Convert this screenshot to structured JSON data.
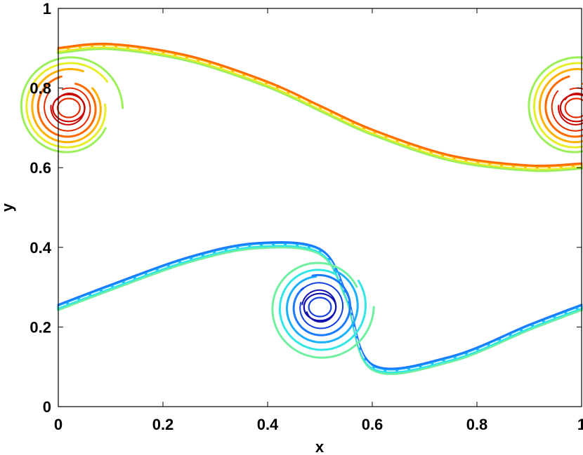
{
  "chart_data": {
    "type": "contour",
    "title": "",
    "xlabel": "x",
    "ylabel": "y",
    "xlim": [
      0,
      1
    ],
    "ylim": [
      0,
      1
    ],
    "xticks": [
      "0",
      "0.2",
      "0.4",
      "0.6",
      "0.8",
      "1"
    ],
    "yticks": [
      "0",
      "0.2",
      "0.4",
      "0.6",
      "0.8",
      "1"
    ],
    "xtick_values": [
      0,
      0.2,
      0.4,
      0.6,
      0.8,
      1
    ],
    "ytick_values": [
      0,
      0.2,
      0.4,
      0.6,
      0.8,
      1
    ],
    "grid": false,
    "colormap": "jet",
    "structures": [
      {
        "name": "upper-vortex-layer",
        "color_family": "warm",
        "core_centers": [
          [
            0.02,
            0.75
          ],
          [
            0.99,
            0.75
          ]
        ],
        "sheet_points": [
          [
            0.0,
            0.895
          ],
          [
            0.1,
            0.905
          ],
          [
            0.25,
            0.875
          ],
          [
            0.4,
            0.81
          ],
          [
            0.5,
            0.75
          ],
          [
            0.6,
            0.69
          ],
          [
            0.75,
            0.625
          ],
          [
            0.9,
            0.6
          ],
          [
            1.0,
            0.605
          ]
        ],
        "levels": [
          "#9aef5a",
          "#e6ee2a",
          "#ffb000",
          "#ff6a00",
          "#e52a00",
          "#c80000"
        ]
      },
      {
        "name": "lower-vortex-layer",
        "color_family": "cool",
        "core_centers": [
          [
            0.5,
            0.25
          ]
        ],
        "sheet_points": [
          [
            0.0,
            0.25
          ],
          [
            0.1,
            0.3
          ],
          [
            0.25,
            0.37
          ],
          [
            0.38,
            0.405
          ],
          [
            0.5,
            0.39
          ],
          [
            0.55,
            0.28
          ],
          [
            0.6,
            0.1
          ],
          [
            0.75,
            0.12
          ],
          [
            0.9,
            0.2
          ],
          [
            1.0,
            0.25
          ]
        ],
        "levels": [
          "#6ef0a0",
          "#33e6e6",
          "#1ab0ff",
          "#1a7bff",
          "#1440e0",
          "#1010b0"
        ]
      }
    ]
  }
}
